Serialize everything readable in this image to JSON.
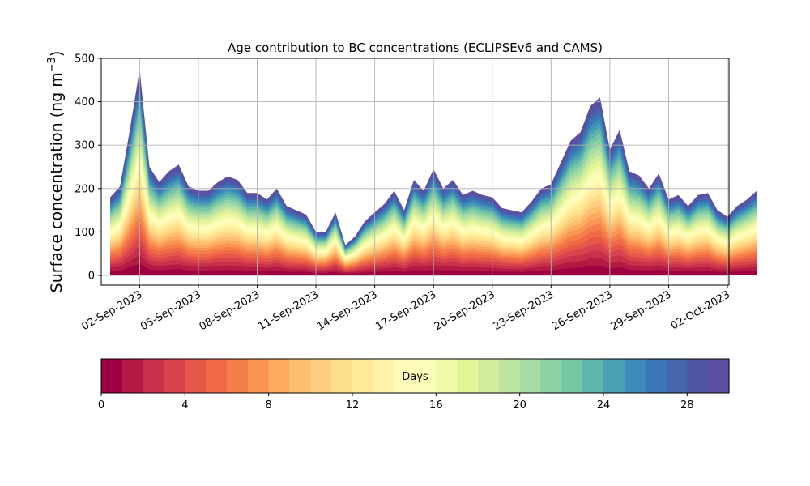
{
  "chart_data": {
    "type": "area",
    "title": "Age contribution to BC concentrations (ECLIPSEv6 and CAMS)",
    "ylabel": "Surface concentration (ng m",
    "ylabel_sup": "−3",
    "ylabel_close": ")",
    "xlabel": "",
    "ylim": [
      0,
      500
    ],
    "yticks": [
      0,
      100,
      200,
      300,
      400,
      500
    ],
    "xlim": [
      "2023-08-31T01:00",
      "2023-10-02T02:00"
    ],
    "xticks": [
      "02-Sep-2023",
      "05-Sep-2023",
      "08-Sep-2023",
      "11-Sep-2023",
      "14-Sep-2023",
      "17-Sep-2023",
      "20-Sep-2023",
      "23-Sep-2023",
      "26-Sep-2023",
      "29-Sep-2023",
      "02-Oct-2023"
    ],
    "grid": true,
    "stacked": true,
    "x_start": "2023-08-31T12:00",
    "x_step_hours": 12,
    "total": [
      180,
      205,
      335,
      475,
      250,
      215,
      240,
      255,
      205,
      195,
      195,
      215,
      228,
      220,
      190,
      190,
      175,
      200,
      160,
      150,
      140,
      100,
      100,
      145,
      70,
      90,
      125,
      145,
      165,
      195,
      150,
      220,
      195,
      245,
      200,
      220,
      185,
      195,
      185,
      180,
      155,
      150,
      145,
      170,
      200,
      210,
      260,
      310,
      330,
      390,
      410,
      290,
      335,
      240,
      230,
      200,
      235,
      175,
      185,
      160,
      185,
      190,
      150,
      135,
      160,
      175,
      195
    ],
    "age_bins": 30,
    "colorbar": {
      "label": "Days",
      "ticks": [
        0,
        4,
        8,
        12,
        16,
        20,
        24,
        28
      ],
      "range": [
        0,
        30
      ],
      "colors": [
        "#9e0142",
        "#b31b45",
        "#c9314b",
        "#d8434d",
        "#e55749",
        "#ef6a45",
        "#f57d4a",
        "#f99455",
        "#fcaa5f",
        "#fdbe6f",
        "#fecf80",
        "#fee08b",
        "#feea98",
        "#fff4a8",
        "#fffbb8",
        "#fbfdb9",
        "#f0f9a7",
        "#e4f498",
        "#d1ec9c",
        "#bde5a0",
        "#a6dba4",
        "#8ed1a4",
        "#75c7a5",
        "#5fb5aa",
        "#4aa0b2",
        "#3d8bb9",
        "#3a77b7",
        "#4565ac",
        "#5055a4",
        "#5e4fa2"
      ]
    }
  }
}
